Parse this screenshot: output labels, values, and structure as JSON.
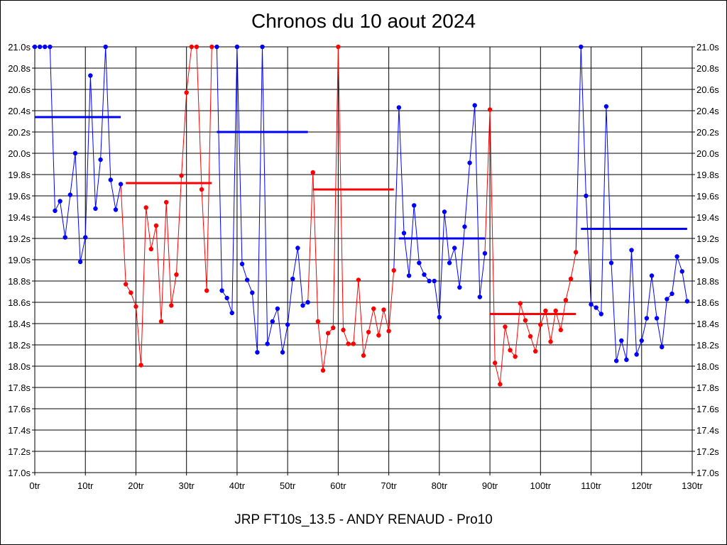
{
  "chart_data": {
    "type": "line",
    "title": "Chronos du 10 aout 2024",
    "subtitle": "JRP FT10s_13.5 - ANDY RENAUD - Pro10",
    "xlim": [
      0,
      130
    ],
    "ylim": [
      17.0,
      21.0
    ],
    "grid": true,
    "x_tick_labels": [
      "0tr",
      "10tr",
      "20tr",
      "30tr",
      "40tr",
      "50tr",
      "60tr",
      "70tr",
      "80tr",
      "90tr",
      "100tr",
      "110tr",
      "120tr",
      "130tr"
    ],
    "y_tick_labels": [
      "21.0s",
      "20.8s",
      "20.6s",
      "20.4s",
      "20.2s",
      "20.0s",
      "19.8s",
      "19.6s",
      "19.4s",
      "19.2s",
      "19.0s",
      "18.8s",
      "18.6s",
      "18.4s",
      "18.2s",
      "18.0s",
      "17.8s",
      "17.6s",
      "17.4s",
      "17.2s",
      "17.0s"
    ],
    "colors": {
      "blue": "#0000ff",
      "red": "#ff0000"
    },
    "segments": [
      {
        "color": "blue",
        "avg": 20.34,
        "x": [
          0,
          1,
          2,
          3,
          4,
          5,
          6,
          7,
          8,
          9,
          10,
          11,
          12,
          13,
          14,
          15,
          16,
          17
        ],
        "y": [
          21.0,
          21.0,
          21.0,
          21.0,
          19.46,
          19.55,
          19.21,
          19.61,
          20.0,
          18.98,
          19.21,
          20.73,
          19.48,
          19.94,
          21.0,
          19.75,
          19.47,
          19.71
        ]
      },
      {
        "color": "red",
        "avg": 19.72,
        "x": [
          18,
          19,
          20,
          21,
          22,
          23,
          24,
          25,
          26,
          27,
          28,
          29,
          30,
          31,
          32,
          33,
          34,
          35
        ],
        "y": [
          18.77,
          18.69,
          18.56,
          18.01,
          19.49,
          19.1,
          19.32,
          18.42,
          19.54,
          18.57,
          18.86,
          19.79,
          20.57,
          21.0,
          21.0,
          19.66,
          18.71,
          21.0
        ]
      },
      {
        "color": "blue",
        "avg": 20.2,
        "x": [
          36,
          37,
          38,
          39,
          40,
          41,
          42,
          43,
          44,
          45,
          46,
          47,
          48,
          49,
          50,
          51,
          52,
          53,
          54
        ],
        "y": [
          21.0,
          18.71,
          18.64,
          18.5,
          21.0,
          18.96,
          18.81,
          18.69,
          18.13,
          21.0,
          18.21,
          18.42,
          18.54,
          18.13,
          18.39,
          18.82,
          19.11,
          18.57,
          18.6
        ]
      },
      {
        "color": "red",
        "avg": 19.66,
        "x": [
          55,
          56,
          57,
          58,
          59,
          60,
          61,
          62,
          63,
          64,
          65,
          66,
          67,
          68,
          69,
          70,
          71
        ],
        "y": [
          19.82,
          18.42,
          17.96,
          18.31,
          18.36,
          21.0,
          18.34,
          18.21,
          18.21,
          18.81,
          18.1,
          18.32,
          18.54,
          18.29,
          18.53,
          18.33,
          18.9
        ]
      },
      {
        "color": "blue",
        "avg": 19.2,
        "x": [
          72,
          73,
          74,
          75,
          76,
          77,
          78,
          79,
          80,
          81,
          82,
          83,
          84,
          85,
          86,
          87,
          88,
          89
        ],
        "y": [
          20.43,
          19.25,
          18.85,
          19.51,
          18.97,
          18.86,
          18.8,
          18.8,
          18.46,
          19.45,
          18.97,
          19.11,
          18.74,
          19.31,
          19.91,
          20.45,
          18.65,
          19.06
        ]
      },
      {
        "color": "red",
        "avg": 18.49,
        "x": [
          90,
          91,
          92,
          93,
          94,
          95,
          96,
          97,
          98,
          99,
          100,
          101,
          102,
          103,
          104,
          105,
          106,
          107
        ],
        "y": [
          20.41,
          18.03,
          17.83,
          18.37,
          18.15,
          18.09,
          18.59,
          18.43,
          18.28,
          18.14,
          18.39,
          18.52,
          18.23,
          18.52,
          18.34,
          18.62,
          18.82,
          19.07
        ]
      },
      {
        "color": "blue",
        "avg": 19.29,
        "x": [
          108,
          109,
          110,
          111,
          112,
          113,
          114,
          115,
          116,
          117,
          118,
          119,
          120,
          121,
          122,
          123,
          124,
          125,
          126,
          127,
          128,
          129
        ],
        "y": [
          21.0,
          19.6,
          18.58,
          18.55,
          18.49,
          20.44,
          18.97,
          18.05,
          18.24,
          18.06,
          19.09,
          18.11,
          18.24,
          18.45,
          18.85,
          18.45,
          18.18,
          18.63,
          18.68,
          19.03,
          18.89,
          18.61
        ]
      }
    ]
  }
}
